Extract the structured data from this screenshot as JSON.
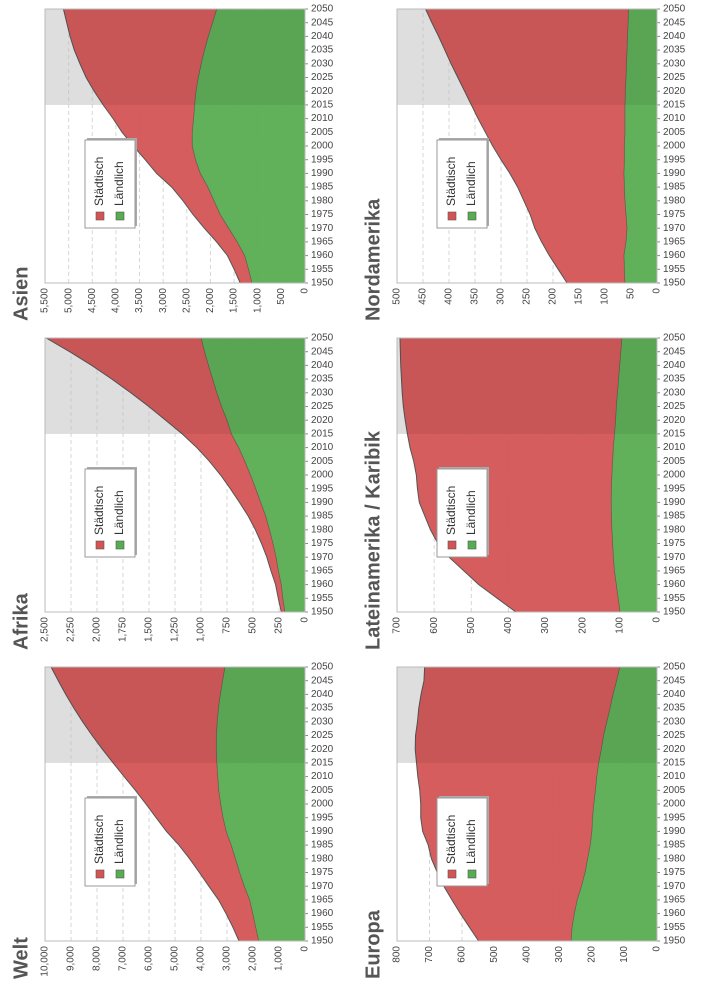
{
  "chart_data": [
    {
      "type": "area",
      "title": "Welt",
      "stacked": true,
      "legend": "upper left",
      "x": [
        1950,
        1955,
        1960,
        1965,
        1970,
        1975,
        1980,
        1985,
        1990,
        1995,
        2000,
        2005,
        2010,
        2015,
        2020,
        2025,
        2030,
        2035,
        2040,
        2045,
        2050
      ],
      "xlim": [
        1950,
        2050
      ],
      "shaded_from": 2015,
      "series": [
        {
          "name": "Städtisch",
          "color": "#d45454",
          "values": [
            751,
            870,
            1019,
            1188,
            1354,
            1541,
            1754,
            2004,
            2290,
            2566,
            2868,
            3199,
            3595,
            3981,
            4379,
            4774,
            5167,
            5555,
            5938,
            6313,
            6680
          ]
        },
        {
          "name": "Ländlich",
          "color": "#57ad51",
          "values": [
            1786,
            1903,
            2016,
            2137,
            2345,
            2522,
            2683,
            2846,
            3038,
            3160,
            3251,
            3325,
            3362,
            3398,
            3416,
            3412,
            3384,
            3335,
            3264,
            3176,
            3087
          ]
        }
      ],
      "ylim": [
        0,
        10000
      ],
      "yticks": [
        0,
        {
          "value": 1000,
          "label": "1,000"
        },
        {
          "value": 2000,
          "label": "2,000"
        },
        {
          "value": 3000,
          "label": "3,000"
        },
        {
          "value": 4000,
          "label": "4,000"
        },
        {
          "value": 5000,
          "label": "5,000"
        },
        {
          "value": 6000,
          "label": "6,000"
        },
        {
          "value": 7000,
          "label": "7,000"
        },
        {
          "value": 8000,
          "label": "8,000"
        },
        {
          "value": 9000,
          "label": "9,000"
        },
        {
          "value": 10000,
          "label": "10,000"
        }
      ]
    },
    {
      "type": "area",
      "title": "Afrika",
      "stacked": true,
      "legend": "upper left",
      "x": [
        1950,
        1955,
        1960,
        1965,
        1970,
        1975,
        1980,
        1985,
        1990,
        1995,
        2000,
        2005,
        2010,
        2015,
        2020,
        2025,
        2030,
        2035,
        2040,
        2045,
        2050
      ],
      "xlim": [
        1950,
        2050
      ],
      "shaded_from": 2015,
      "series": [
        {
          "name": "Städtisch",
          "color": "#d45454",
          "values": [
            33,
            42,
            53,
            69,
            87,
            108,
            134,
            166,
            202,
            242,
            286,
            339,
            400,
            471,
            588,
            697,
            824,
            967,
            1120,
            1295,
            1489
          ]
        },
        {
          "name": "Ländlich",
          "color": "#57ad51",
          "values": [
            195,
            215,
            230,
            258,
            280,
            310,
            343,
            380,
            428,
            476,
            526,
            580,
            640,
            710,
            752,
            805,
            850,
            890,
            930,
            968,
            1000
          ]
        }
      ],
      "ylim": [
        0,
        2500
      ],
      "yticks": [
        0,
        250,
        500,
        750,
        {
          "value": 1000,
          "label": "1,000"
        },
        {
          "value": 1250,
          "label": "1,250"
        },
        {
          "value": 1500,
          "label": "1,500"
        },
        {
          "value": 1750,
          "label": "1,750"
        },
        {
          "value": 2000,
          "label": "2,000"
        },
        {
          "value": 2250,
          "label": "2,250"
        },
        {
          "value": 2500,
          "label": "2,500"
        }
      ]
    },
    {
      "type": "area",
      "title": "Asien",
      "stacked": true,
      "legend": "upper left",
      "x": [
        1950,
        1955,
        1960,
        1965,
        1970,
        1975,
        1980,
        1985,
        1990,
        1995,
        2000,
        2005,
        2010,
        2015,
        2020,
        2025,
        2030,
        2035,
        2040,
        2045,
        2050
      ],
      "xlim": [
        1950,
        2050
      ],
      "shaded_from": 2015,
      "series": [
        {
          "name": "Städtisch",
          "color": "#d45454",
          "values": [
            245,
            300,
            360,
            430,
            510,
            570,
            650,
            760,
            920,
            1060,
            1240,
            1480,
            1700,
            1930,
            2150,
            2370,
            2560,
            2750,
            2920,
            3080,
            3240
          ]
        },
        {
          "name": "Ländlich",
          "color": "#57ad51",
          "values": [
            1126,
            1199,
            1280,
            1440,
            1620,
            1800,
            1930,
            2060,
            2220,
            2320,
            2390,
            2390,
            2360,
            2340,
            2310,
            2260,
            2200,
            2130,
            2050,
            1960,
            1870
          ]
        }
      ],
      "ylim": [
        0,
        5500
      ],
      "yticks": [
        0,
        500,
        {
          "value": 1000,
          "label": "1,000"
        },
        {
          "value": 1500,
          "label": "1,500"
        },
        {
          "value": 2000,
          "label": "2,000"
        },
        {
          "value": 2500,
          "label": "2,500"
        },
        {
          "value": 3000,
          "label": "3,000"
        },
        {
          "value": 3500,
          "label": "3,500"
        },
        {
          "value": 4000,
          "label": "4,000"
        },
        {
          "value": 4500,
          "label": "4,500"
        },
        {
          "value": 5000,
          "label": "5,000"
        },
        {
          "value": 5500,
          "label": "5,500"
        }
      ]
    },
    {
      "type": "area",
      "title": "Europa",
      "stacked": true,
      "legend": "upper left",
      "x": [
        1950,
        1955,
        1960,
        1965,
        1970,
        1975,
        1980,
        1985,
        1990,
        1995,
        2000,
        2005,
        2010,
        2015,
        2020,
        2025,
        2030,
        2035,
        2040,
        2045,
        2050
      ],
      "xlim": [
        1950,
        2050
      ],
      "shaded_from": 2015,
      "series": [
        {
          "name": "Städtisch",
          "color": "#d45454",
          "values": [
            284,
            315,
            350,
            385,
            423,
            454,
            480,
            498,
            520,
            528,
            532,
            540,
            550,
            560,
            572,
            578,
            582,
            588,
            590,
            592,
            600
          ]
        },
        {
          "name": "Ländlich",
          "color": "#57ad51",
          "values": [
            265,
            262,
            255,
            246,
            233,
            222,
            214,
            206,
            201,
            199,
            195,
            190,
            186,
            180,
            172,
            165,
            155,
            145,
            136,
            125,
            115
          ]
        }
      ],
      "ylim": [
        0,
        800
      ],
      "yticks": [
        0,
        100,
        200,
        300,
        400,
        500,
        600,
        700,
        800
      ]
    },
    {
      "type": "area",
      "title": "Lateinamerika / Karibik",
      "stacked": true,
      "legend": "upper left",
      "x": [
        1950,
        1955,
        1960,
        1965,
        1970,
        1975,
        1980,
        1985,
        1990,
        1995,
        2000,
        2005,
        2010,
        2015,
        2020,
        2025,
        2030,
        2035,
        2040,
        2045,
        2050
      ],
      "xlim": [
        1950,
        2050
      ],
      "shaded_from": 2015,
      "series": [
        {
          "name": "Städtisch",
          "color": "#d45454",
          "values": [
            280,
            325,
            370,
            405,
            442,
            470,
            488,
            502,
            516,
            522,
            526,
            535,
            547,
            557,
            566,
            573,
            579,
            584,
            589,
            593,
            597
          ]
        },
        {
          "name": "Ländlich",
          "color": "#57ad51",
          "values": [
            100,
            105,
            110,
            115,
            118,
            120,
            122,
            123,
            124,
            123,
            122,
            120,
            118,
            115,
            112,
            110,
            107,
            104,
            101,
            98,
            95
          ]
        }
      ],
      "ylim": [
        0,
        700
      ],
      "yticks": [
        0,
        100,
        200,
        300,
        400,
        500,
        600,
        700
      ]
    },
    {
      "type": "area",
      "title": "Nordamerika",
      "stacked": true,
      "legend": "upper left",
      "x": [
        1950,
        1955,
        1960,
        1965,
        1970,
        1975,
        1980,
        1985,
        1990,
        1995,
        2000,
        2005,
        2010,
        2015,
        2020,
        2025,
        2030,
        2035,
        2040,
        2045,
        2050
      ],
      "xlim": [
        1950,
        2050
      ],
      "shaded_from": 2015,
      "series": [
        {
          "name": "Städtisch",
          "color": "#d45454",
          "values": [
            111,
            127,
            143,
            162,
            177,
            184,
            194,
            205,
            219,
            237,
            253,
            268,
            282,
            295,
            309,
            323,
            337,
            350,
            363,
            377,
            390
          ]
        },
        {
          "name": "Ländlich",
          "color": "#57ad51",
          "values": [
            62,
            63,
            64,
            60,
            58,
            60,
            62,
            63,
            64,
            63,
            63,
            62,
            62,
            62,
            61,
            60,
            59,
            58,
            57,
            56,
            55
          ]
        }
      ],
      "ylim": [
        0,
        500
      ],
      "yticks": [
        0,
        50,
        100,
        150,
        200,
        250,
        300,
        350,
        400,
        450,
        500
      ]
    }
  ]
}
